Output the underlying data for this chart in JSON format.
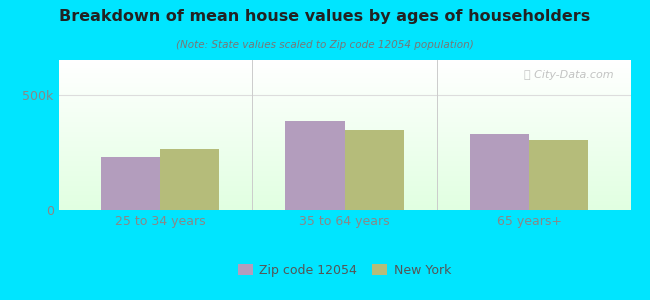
{
  "title": "Breakdown of mean house values by ages of householders",
  "subtitle": "(Note: State values scaled to Zip code 12054 population)",
  "categories": [
    "25 to 34 years",
    "35 to 64 years",
    "65 years+"
  ],
  "zip_values": [
    230000,
    385000,
    330000
  ],
  "ny_values": [
    265000,
    345000,
    305000
  ],
  "zip_color": "#b39dbd",
  "ny_color": "#b5bc7a",
  "bg_color": "#00e5ff",
  "ylim": [
    0,
    650000
  ],
  "yticks": [
    0,
    500000
  ],
  "ytick_labels": [
    "0",
    "500k"
  ],
  "bar_width": 0.32,
  "legend_zip": "Zip code 12054",
  "legend_ny": "New York",
  "watermark": "ⓘ City-Data.com"
}
